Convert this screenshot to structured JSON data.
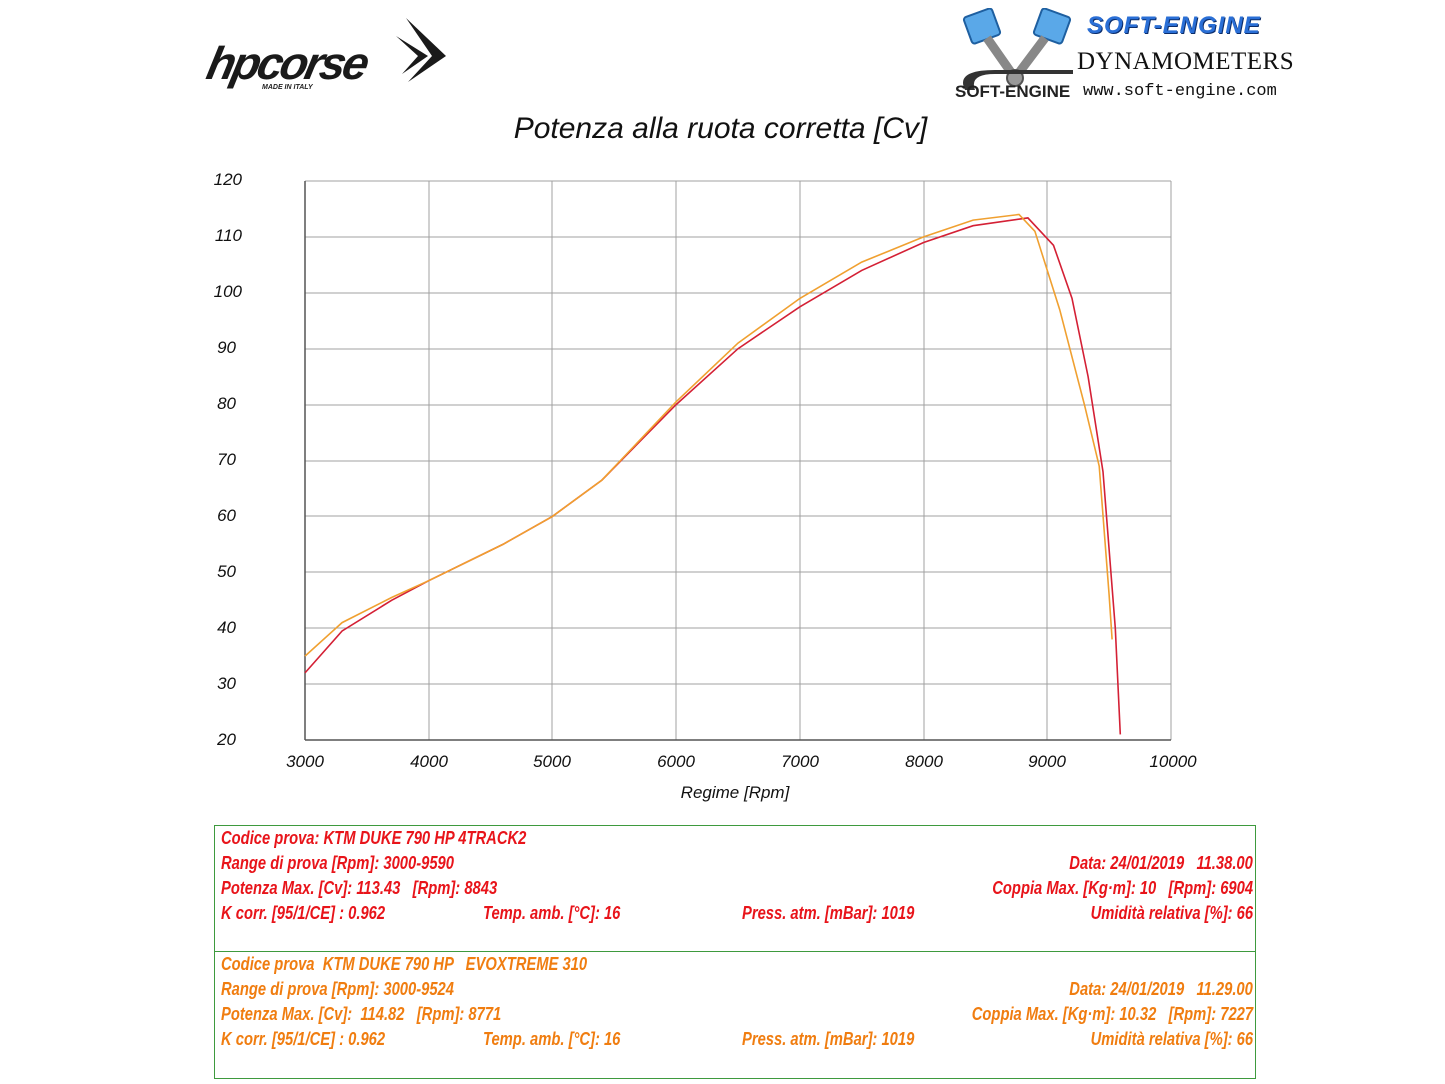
{
  "logos": {
    "left": {
      "name": "hpcorse",
      "tagline": "MADE IN ITALY"
    },
    "right": {
      "brand": "SOFT-ENGINE",
      "subtitle": "DYNAMOMETERS",
      "url": "www.soft-engine.com",
      "mark": "SOFT-ENGINE"
    }
  },
  "chart_data": {
    "type": "line",
    "title": "Potenza alla ruota corretta [Cv]",
    "xlabel": "Regime [Rpm]",
    "ylabel": "",
    "xlim": [
      3000,
      10000
    ],
    "ylim": [
      20,
      120
    ],
    "x_ticks": [
      "3000",
      "4000",
      "5000",
      "6000",
      "7000",
      "8000",
      "9000",
      "10000"
    ],
    "y_ticks": [
      "120",
      "110",
      "100",
      "90",
      "80",
      "70",
      "60",
      "50",
      "40",
      "30",
      "20"
    ],
    "grid": true,
    "legend": "none (series identified by colored info boxes below chart)",
    "series": [
      {
        "name": "KTM DUKE 790 HP 4TRACK2",
        "color": "#d42035",
        "points": [
          [
            3000,
            32
          ],
          [
            3300,
            39.5
          ],
          [
            3700,
            45
          ],
          [
            4000,
            48.5
          ],
          [
            4600,
            55
          ],
          [
            5000,
            60
          ],
          [
            5400,
            66.5
          ],
          [
            6000,
            80
          ],
          [
            6500,
            90
          ],
          [
            7000,
            97.5
          ],
          [
            7500,
            104
          ],
          [
            8000,
            109
          ],
          [
            8400,
            112
          ],
          [
            8843,
            113.4
          ],
          [
            9050,
            108.5
          ],
          [
            9200,
            99
          ],
          [
            9330,
            85
          ],
          [
            9450,
            68
          ],
          [
            9550,
            40
          ],
          [
            9590,
            21
          ]
        ]
      },
      {
        "name": "KTM DUKE 790 HP EVOXTREME 310",
        "color": "#f0a030",
        "points": [
          [
            3000,
            35
          ],
          [
            3300,
            41
          ],
          [
            3700,
            45.5
          ],
          [
            4000,
            48.5
          ],
          [
            4600,
            55
          ],
          [
            5000,
            60
          ],
          [
            5400,
            66.5
          ],
          [
            6000,
            80.5
          ],
          [
            6500,
            91
          ],
          [
            7000,
            99
          ],
          [
            7500,
            105.5
          ],
          [
            8000,
            110
          ],
          [
            8400,
            113
          ],
          [
            8771,
            114
          ],
          [
            8900,
            111
          ],
          [
            9100,
            97
          ],
          [
            9300,
            80
          ],
          [
            9420,
            69
          ],
          [
            9500,
            46
          ],
          [
            9524,
            38
          ]
        ]
      }
    ]
  },
  "tests": [
    {
      "color": "#e8141a",
      "codice": "Codice prova: KTM DUKE 790 HP 4TRACK2",
      "range": "Range di prova [Rpm]: 3000-9590",
      "potenza": "Potenza Max. [Cv]: 113.43   [Rpm]: 8843",
      "kcorr": "K corr. [95/1/CE] : 0.962",
      "temp": "Temp. amb. [°C]: 16",
      "press": "Press. atm. [mBar]: 1019",
      "data": "Data: 24/01/2019   11.38.00",
      "coppia": "Coppia Max. [Kg·m]: 10   [Rpm]: 6904",
      "umidita": "Umidità relativa [%]: 66"
    },
    {
      "color": "#f07d10",
      "codice": "Codice prova  KTM DUKE 790 HP   EVOXTREME 310",
      "range": "Range di prova [Rpm]: 3000-9524",
      "potenza": "Potenza Max. [Cv]:  114.82   [Rpm]: 8771",
      "kcorr": "K corr. [95/1/CE] : 0.962",
      "temp": "Temp. amb. [°C]: 16",
      "press": "Press. atm. [mBar]: 1019",
      "data": "Data: 24/01/2019   11.29.00",
      "coppia": "Coppia Max. [Kg·m]: 10.32   [Rpm]: 7227",
      "umidita": "Umidità relativa [%]: 66"
    }
  ]
}
